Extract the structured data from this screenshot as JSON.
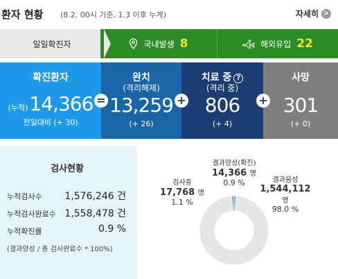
{
  "header": {
    "title": "환자 현황",
    "subtitle": "(8.2. 00시 기준, 1.3 이후 누계)",
    "detail_label": "자세히",
    "detail_arrow": ">"
  },
  "tabs": {
    "daily_label": "일일확진자",
    "domestic_label": "국내발생",
    "domestic_value": "8",
    "overseas_label": "해외유입",
    "overseas_value": "22"
  },
  "stats": {
    "confirmed": {
      "title": "확진환자",
      "prefix": "(누적)",
      "value": "14,366",
      "delta": "전일대비 (+ 30)"
    },
    "released": {
      "title": "완치",
      "sub": "(격리해제)",
      "value": "13,259",
      "delta": "(+ 26)"
    },
    "treating": {
      "title": "치료 중",
      "sub": "(격리 중)",
      "help": "?",
      "value": "806",
      "delta": "(+ 4)"
    },
    "deaths": {
      "title": "사망",
      "value": "301",
      "delta": "(+ 0)"
    },
    "operators": [
      "=",
      "+",
      "+",
      "+"
    ]
  },
  "testing": {
    "title": "검사현황",
    "rows": [
      {
        "label": "누적검사수",
        "value": "1,576,246 건"
      },
      {
        "label": "누적검사완료수",
        "value": "1,558,478 건"
      },
      {
        "label": "누적확진률",
        "value": "0.9 %"
      }
    ],
    "note": "(결과양성 / 총 검사완료수 * 100%)"
  },
  "chart_data": {
    "type": "pie",
    "style": "donut",
    "slices": [
      {
        "name": "결과양성(확진)",
        "value": 14366,
        "unit": "명",
        "percent": 0.9,
        "color": "#1ea7e4"
      },
      {
        "name": "결과음성",
        "value": 1544112,
        "unit": "명",
        "percent": 98.0,
        "color": "#e6e6e6"
      },
      {
        "name": "검사중",
        "value": 17768,
        "unit": "명",
        "percent": 1.1,
        "color": "#8fa0a8"
      }
    ],
    "labels": {
      "positive_name": "결과양성(확진)",
      "positive_value": "14,366",
      "positive_unit": "명",
      "positive_pct": "0.9 %",
      "negative_name": "결과음성",
      "negative_value": "1,544,112",
      "negative_unit": "명",
      "negative_pct": "98.0 %",
      "testing_name": "검사중",
      "testing_value": "17,768",
      "testing_unit": "명",
      "testing_pct": "1.1 %"
    }
  }
}
